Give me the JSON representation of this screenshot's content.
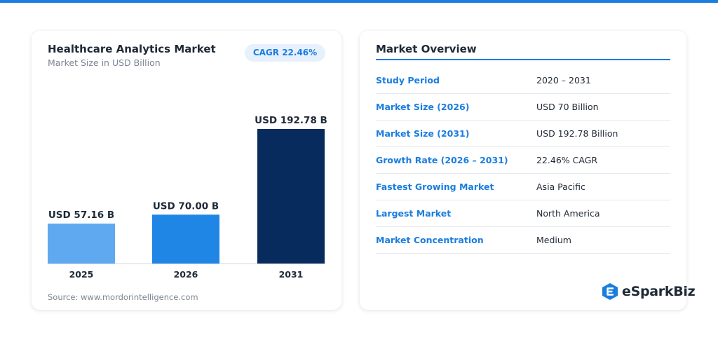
{
  "chart_data": {
    "type": "bar",
    "title": "Healthcare Analytics Market",
    "subtitle": "Market Size in USD Billion",
    "categories": [
      "2025",
      "2026",
      "2031"
    ],
    "values": [
      57.16,
      70.0,
      192.78
    ],
    "value_labels": [
      "USD 57.16 B",
      "USD 70.00 B",
      "USD 192.78 B"
    ],
    "bar_colors": [
      "#5ea9f0",
      "#1f86e6",
      "#062b5c"
    ],
    "ylim": [
      0,
      192.78
    ],
    "grid": false,
    "legend": "none"
  },
  "badge": {
    "cagr": "CAGR 22.46%"
  },
  "source": "Source: www.mordorintelligence.com",
  "overview": {
    "title": "Market Overview",
    "rows": [
      {
        "label": "Study Period",
        "value": "2020 – 2031"
      },
      {
        "label": "Market Size (2026)",
        "value": "USD 70 Billion"
      },
      {
        "label": "Market Size (2031)",
        "value": "USD 192.78 Billion"
      },
      {
        "label": "Growth Rate (2026 – 2031)",
        "value": "22.46% CAGR"
      },
      {
        "label": "Fastest Growing Market",
        "value": "Asia Pacific"
      },
      {
        "label": "Largest Market",
        "value": "North America"
      },
      {
        "label": "Market Concentration",
        "value": "Medium"
      }
    ]
  },
  "brand": {
    "name": "eSparkBiz",
    "icon": "espark-logo-icon"
  },
  "colors": {
    "accent": "#1a7de0",
    "text": "#1f2937",
    "muted": "#7b8593"
  }
}
